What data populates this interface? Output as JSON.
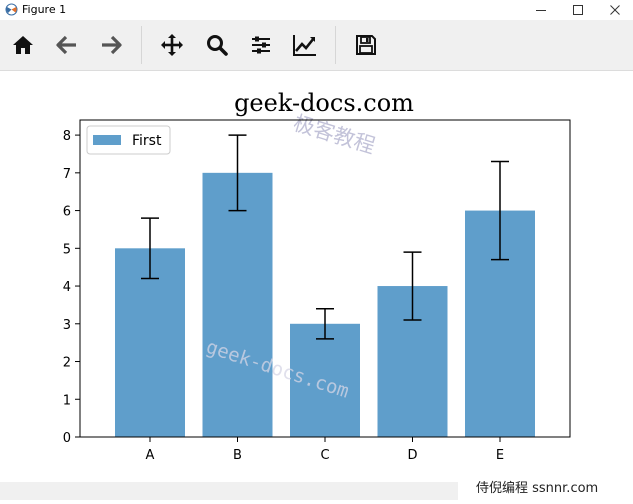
{
  "window": {
    "title": "Figure 1"
  },
  "toolbar": {
    "buttons": [
      {
        "icon": "home-icon"
      },
      {
        "icon": "back-arrow-icon"
      },
      {
        "icon": "forward-arrow-icon"
      },
      {
        "icon": "pan-icon"
      },
      {
        "icon": "zoom-icon"
      },
      {
        "icon": "subplots-config-icon"
      },
      {
        "icon": "edit-axes-icon"
      },
      {
        "icon": "save-icon"
      }
    ]
  },
  "chart_data": {
    "type": "bar",
    "title": "geek-docs.com",
    "xlabel": "",
    "ylabel": "",
    "categories": [
      "A",
      "B",
      "C",
      "D",
      "E"
    ],
    "series": [
      {
        "name": "First",
        "values": [
          5,
          7,
          3,
          4,
          6
        ],
        "errors": [
          0.8,
          1.0,
          0.4,
          0.9,
          1.3
        ],
        "color": "#5f9ecb"
      }
    ],
    "ylim": [
      0,
      8.4
    ],
    "yticks": [
      0,
      1,
      2,
      3,
      4,
      5,
      6,
      7,
      8
    ],
    "grid": false,
    "legend": "top-left"
  },
  "watermarks": {
    "chinese": "极客教程",
    "diagonal": "geek-docs.com"
  },
  "footer": {
    "credit": "侍倪编程 ssnnr.com"
  },
  "colors": {
    "bar": "#5f9ecb",
    "error": "#000000",
    "toolbar_bg": "#f0f0f0"
  }
}
